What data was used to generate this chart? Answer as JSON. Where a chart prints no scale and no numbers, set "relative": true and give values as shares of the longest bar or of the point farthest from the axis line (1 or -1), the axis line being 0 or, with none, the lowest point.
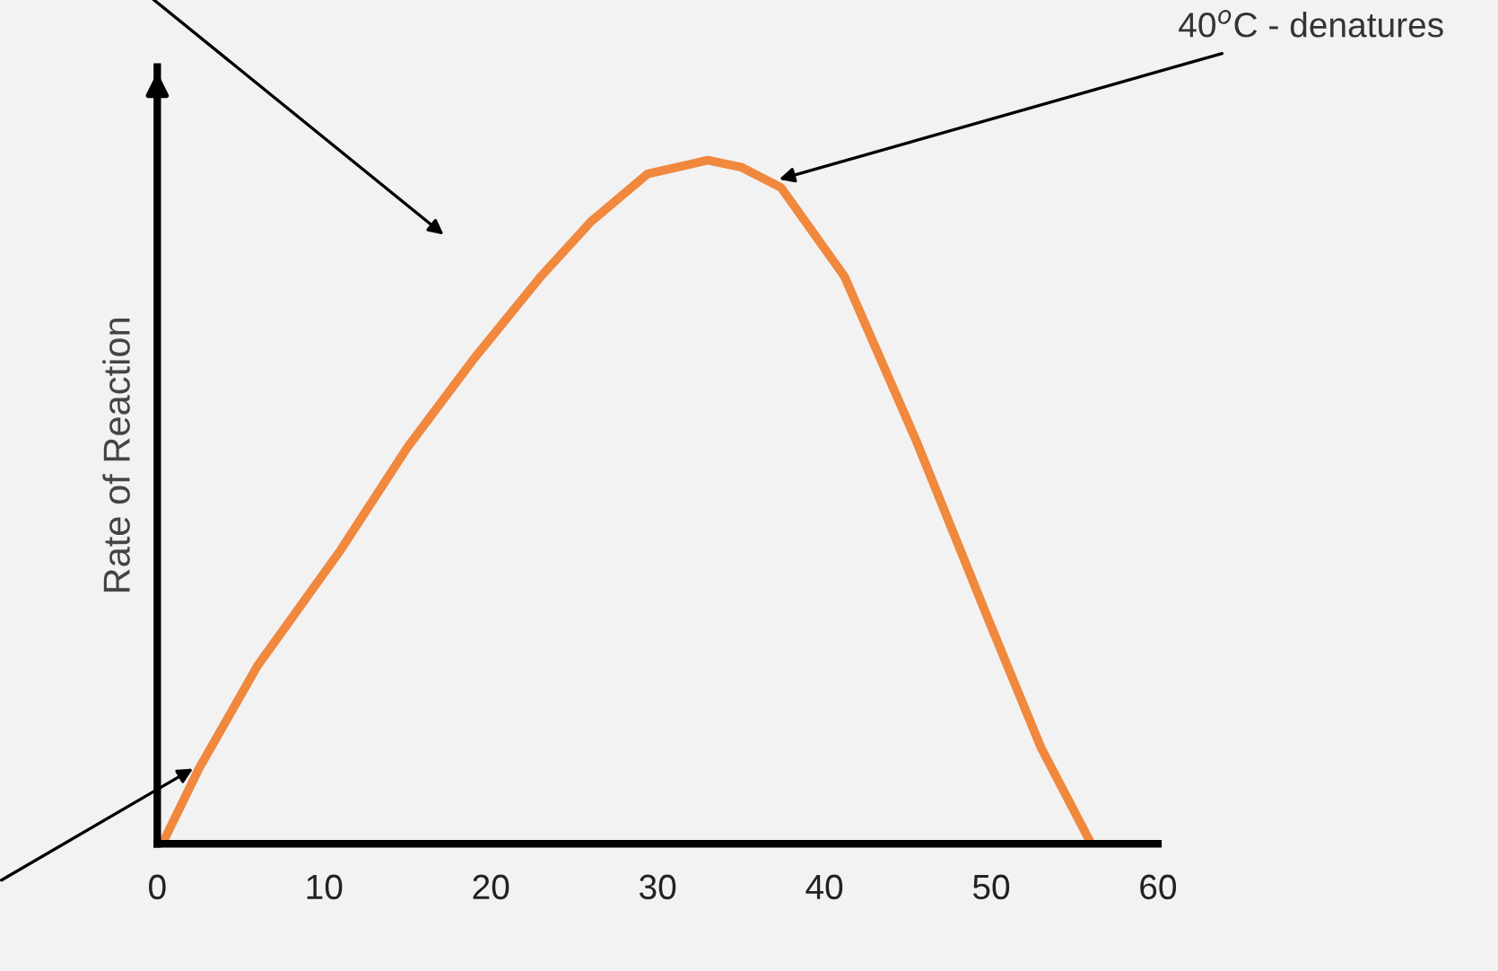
{
  "chart_data": {
    "type": "line",
    "relative": true,
    "ylabel": "Rate of Reaction",
    "x": [
      0.3,
      2.5,
      6,
      11,
      15,
      19,
      23,
      26,
      29.4,
      33,
      35,
      37.4,
      41.2,
      45.5,
      49.8,
      53,
      56
    ],
    "series": [
      {
        "color": "#f0883e",
        "values": [
          0,
          0.11,
          0.26,
          0.43,
          0.58,
          0.71,
          0.83,
          0.91,
          0.98,
          1,
          0.99,
          0.96,
          0.83,
          0.59,
          0.33,
          0.14,
          0
        ]
      }
    ],
    "xlim": [
      0,
      60
    ],
    "xticks": [
      0,
      10,
      20,
      30,
      40,
      50,
      60
    ],
    "annotations": [
      {
        "text": "40$^{o}$C - denatures",
        "x": 37,
        "y": 0.97
      }
    ],
    "grid": false,
    "legend": false,
    "marker": "none",
    "line_style": "solid"
  }
}
